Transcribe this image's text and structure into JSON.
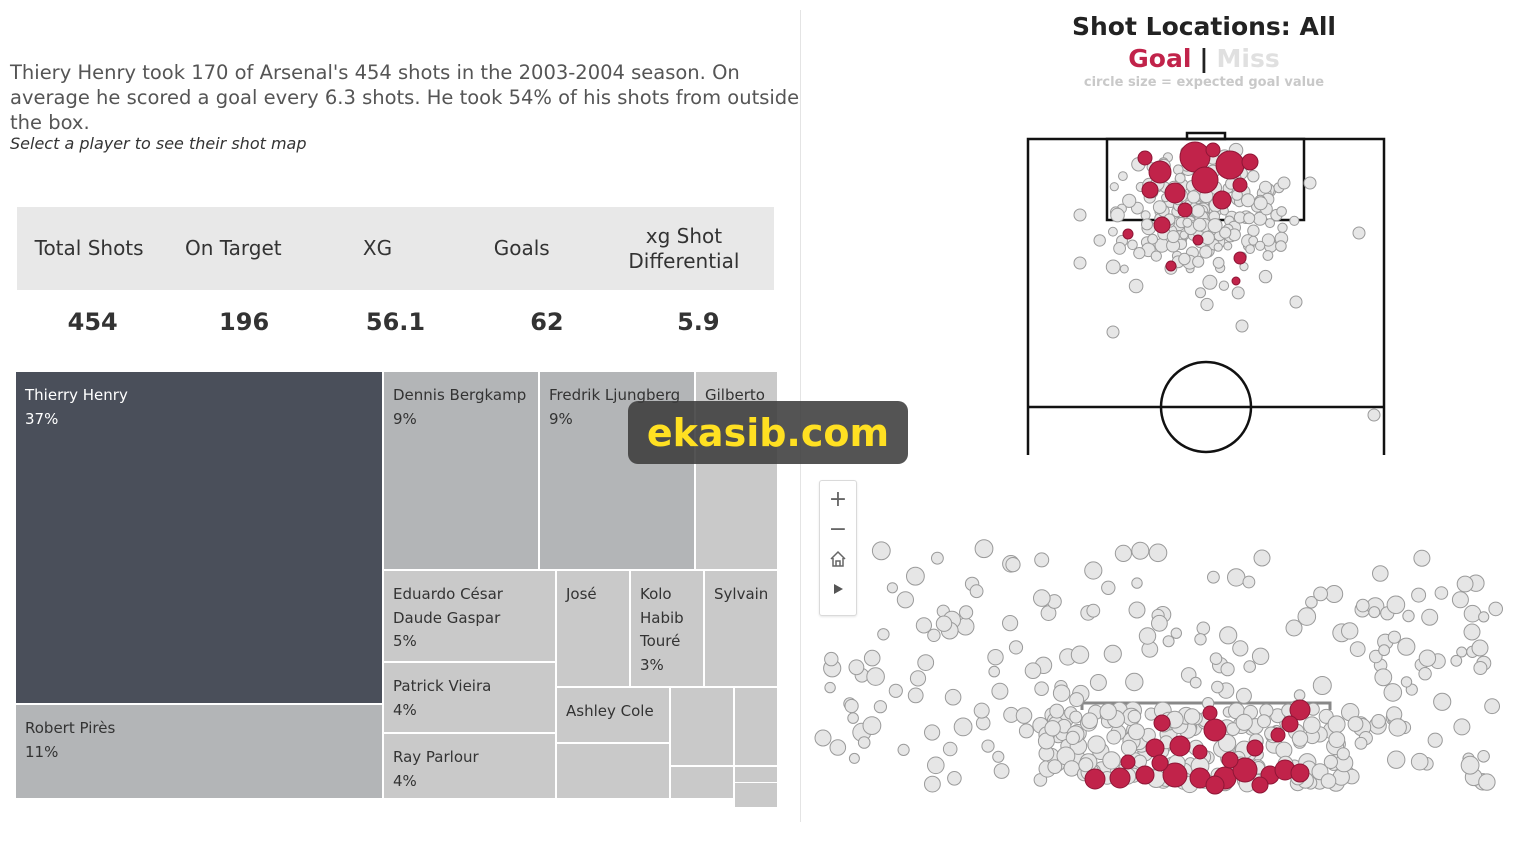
{
  "intro": {
    "text": "Thiery Henry took 170 of Arsenal's 454 shots in the 2003-2004 season. On average he scored a goal every 6.3 shots. He took 54% of his shots from outside the box.",
    "hint": "Select a player to see their shot map"
  },
  "kpis": {
    "headers": [
      "Total Shots",
      "On Target",
      "XG",
      "Goals",
      "xg Shot Differential"
    ],
    "values": [
      "454",
      "196",
      "56.1",
      "62",
      "5.9"
    ]
  },
  "treemap": {
    "players": [
      {
        "name": "Thierry Henry",
        "pct": "37%",
        "color": "#4a4f5a"
      },
      {
        "name": "Robert Pirès",
        "pct": "11%",
        "color": "#b3b5b7"
      },
      {
        "name": "Dennis Bergkamp",
        "pct": "9%",
        "color": "#b3b5b7"
      },
      {
        "name": "Fredrik Ljungberg",
        "pct": "9%",
        "color": "#b3b5b7"
      },
      {
        "name": "Gilberto",
        "pct": "",
        "color": "#c9c9c9"
      },
      {
        "name": "Eduardo César Daude Gaspar",
        "pct": "5%",
        "color": "#c9c9c9"
      },
      {
        "name": "José",
        "pct": "",
        "color": "#c9c9c9"
      },
      {
        "name": "Kolo Habib Touré",
        "pct": "3%",
        "color": "#c9c9c9"
      },
      {
        "name": "Sylvain",
        "pct": "",
        "color": "#c9c9c9"
      },
      {
        "name": "Patrick Vieira",
        "pct": "4%",
        "color": "#c9c9c9"
      },
      {
        "name": "Ashley Cole",
        "pct": "",
        "color": "#c9c9c9"
      },
      {
        "name": "Ray Parlour",
        "pct": "4%",
        "color": "#c9c9c9"
      }
    ]
  },
  "shot_map": {
    "title": "Shot Locations: All",
    "legend_goal": "Goal",
    "legend_sep": "|",
    "legend_miss": "Miss",
    "subtitle": "circle size = expected goal value",
    "goal_color": "#c1234a",
    "miss_color": "#e6e6e6"
  },
  "zoom_controls": {
    "zoom_in": "+",
    "zoom_out": "−",
    "home_icon": "home-icon",
    "play_icon": "play-icon"
  },
  "watermark": "ekasib.com"
}
